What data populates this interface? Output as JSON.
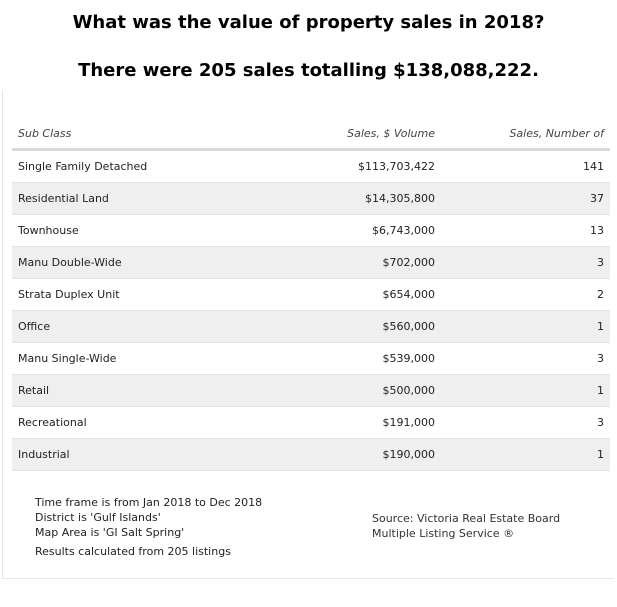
{
  "title": {
    "question": "What was the value of property sales in 2018?",
    "answer": "There were 205 sales totalling $138,088,222."
  },
  "table": {
    "headers": {
      "sub_class": "Sub Class",
      "volume": "Sales, $ Volume",
      "number": "Sales, Number of"
    },
    "rows": [
      {
        "sub_class": "Single Family Detached",
        "volume": "$113,703,422",
        "number": "141"
      },
      {
        "sub_class": "Residential Land",
        "volume": "$14,305,800",
        "number": "37"
      },
      {
        "sub_class": "Townhouse",
        "volume": "$6,743,000",
        "number": "13"
      },
      {
        "sub_class": "Manu Double-Wide",
        "volume": "$702,000",
        "number": "3"
      },
      {
        "sub_class": "Strata Duplex Unit",
        "volume": "$654,000",
        "number": "2"
      },
      {
        "sub_class": "Office",
        "volume": "$560,000",
        "number": "1"
      },
      {
        "sub_class": "Manu Single-Wide",
        "volume": "$539,000",
        "number": "3"
      },
      {
        "sub_class": "Retail",
        "volume": "$500,000",
        "number": "1"
      },
      {
        "sub_class": "Recreational",
        "volume": "$191,000",
        "number": "3"
      },
      {
        "sub_class": "Industrial",
        "volume": "$190,000",
        "number": "1"
      }
    ]
  },
  "notes": {
    "time_frame": "Time frame is from Jan 2018 to Dec 2018",
    "district": "District is 'Gulf Islands'",
    "map_area": "Map Area is 'GI Salt Spring'",
    "results": "Results calculated from 205 listings"
  },
  "source": {
    "line1": "Source: Victoria Real Estate Board",
    "line2": "Multiple Listing Service ®"
  }
}
